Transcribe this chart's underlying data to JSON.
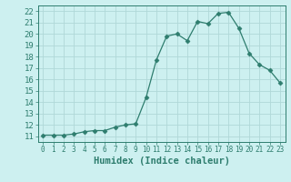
{
  "x": [
    0,
    1,
    2,
    3,
    4,
    5,
    6,
    7,
    8,
    9,
    10,
    11,
    12,
    13,
    14,
    15,
    16,
    17,
    18,
    19,
    20,
    21,
    22,
    23
  ],
  "y": [
    11.1,
    11.1,
    11.1,
    11.2,
    11.4,
    11.5,
    11.5,
    11.8,
    12.0,
    12.1,
    14.4,
    17.7,
    19.8,
    20.0,
    19.4,
    21.1,
    20.9,
    21.8,
    21.9,
    20.5,
    18.3,
    17.3,
    16.8,
    15.7
  ],
  "line_color": "#2e7d6e",
  "marker": "D",
  "marker_size": 2.5,
  "bg_color": "#cdf0f0",
  "grid_color": "#b0d8d8",
  "xlabel": "Humidex (Indice chaleur)",
  "xlim": [
    -0.5,
    23.5
  ],
  "ylim": [
    10.5,
    22.5
  ],
  "yticks": [
    11,
    12,
    13,
    14,
    15,
    16,
    17,
    18,
    19,
    20,
    21,
    22
  ],
  "xticks": [
    0,
    1,
    2,
    3,
    4,
    5,
    6,
    7,
    8,
    9,
    10,
    11,
    12,
    13,
    14,
    15,
    16,
    17,
    18,
    19,
    20,
    21,
    22,
    23
  ],
  "tick_color": "#2e7d6e",
  "label_color": "#2e7d6e",
  "spine_color": "#2e7d6e",
  "ytick_fontsize": 6.5,
  "xtick_fontsize": 5.5,
  "xlabel_fontsize": 7.5
}
